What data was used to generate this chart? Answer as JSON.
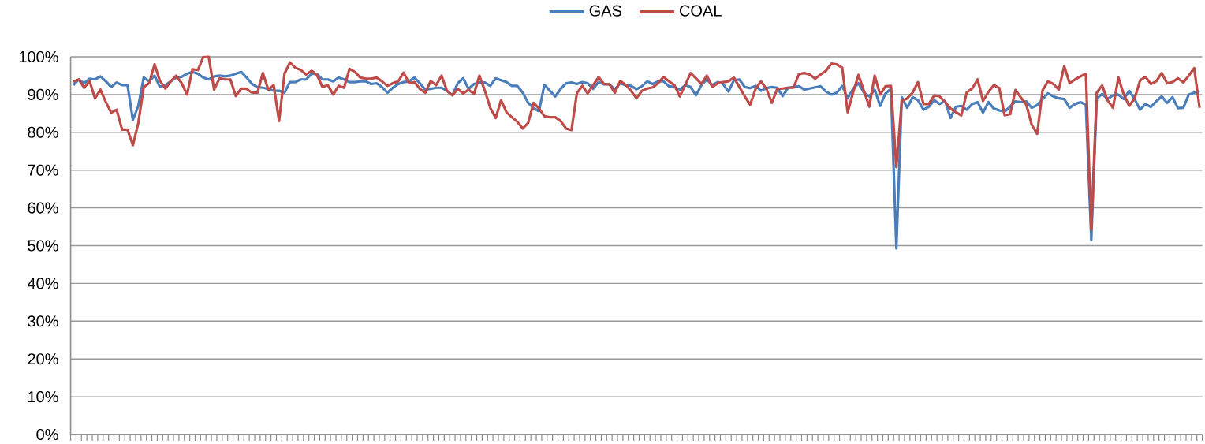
{
  "chart_data": {
    "type": "line",
    "categories": [
      null,
      null,
      null,
      null,
      null,
      null,
      null,
      null,
      null,
      null,
      null,
      null,
      null,
      null,
      null,
      null,
      null,
      null,
      null,
      null,
      null,
      null,
      null,
      null,
      null,
      null,
      null,
      null,
      null,
      null,
      null,
      null,
      null,
      null,
      null,
      null,
      null,
      null,
      null,
      null,
      null,
      null,
      null,
      null,
      null,
      null,
      null,
      null,
      null,
      null,
      null,
      null,
      null,
      null,
      null,
      null,
      null,
      null,
      null,
      null,
      null,
      null,
      null,
      null,
      null,
      null,
      null,
      null,
      null,
      null,
      null,
      null,
      null,
      null,
      null,
      null,
      null,
      null,
      null,
      null,
      null,
      null,
      null,
      null,
      null,
      null,
      null,
      null,
      null,
      null,
      null,
      null,
      null,
      null,
      null,
      null,
      null,
      null,
      null,
      null,
      null,
      null,
      null,
      null,
      null,
      null,
      null,
      null,
      null,
      null,
      null,
      null,
      null,
      null,
      null,
      null,
      null,
      null,
      null,
      null,
      null,
      null,
      null,
      null,
      null,
      null,
      null,
      null,
      null,
      null,
      null,
      null,
      null,
      null,
      null,
      null,
      null,
      null,
      null,
      null,
      null,
      null,
      null,
      null,
      null,
      null,
      null,
      null,
      null,
      null,
      null,
      null,
      null,
      null,
      null,
      null,
      null,
      null,
      null,
      null,
      null,
      null,
      null,
      null,
      null,
      null,
      null,
      null,
      null,
      null,
      null,
      null,
      null,
      null,
      null,
      null,
      null,
      null,
      null,
      null,
      null,
      null,
      null,
      null,
      null,
      null,
      null,
      null,
      null,
      null,
      null,
      null,
      null,
      null,
      null,
      null,
      null,
      null,
      null,
      null,
      null,
      null,
      null,
      null,
      null,
      null,
      null,
      null,
      null
    ],
    "series": [
      {
        "name": "GAS",
        "color": "#4a7ebb",
        "values": [
          92.5,
          94,
          93,
          94.2,
          94,
          94.8,
          93.5,
          92,
          93.2,
          92.5,
          92.5,
          83.3,
          87,
          94.5,
          93.5,
          95,
          92,
          92.5,
          93.5,
          94.5,
          94.7,
          95.5,
          96,
          95.5,
          94.5,
          94,
          94.8,
          95,
          94.8,
          95,
          95.5,
          96,
          94.5,
          92.8,
          92,
          91.8,
          91.5,
          91,
          91,
          90.5,
          93.3,
          93.3,
          94,
          94,
          95.5,
          95.5,
          94,
          94,
          93.5,
          94.5,
          94,
          93.3,
          93.3,
          93.5,
          93.5,
          92.8,
          93,
          92,
          90.5,
          91.8,
          92.8,
          93.3,
          93.5,
          94.5,
          93,
          91.3,
          91.5,
          91.8,
          91.8,
          91,
          89.8,
          93,
          94.3,
          91.5,
          92.8,
          93.2,
          93.2,
          92.3,
          94.3,
          93.8,
          93.3,
          92.3,
          92.3,
          90.5,
          87.8,
          86.4,
          85.6,
          92.6,
          91,
          89.5,
          91.5,
          93,
          93.2,
          92.8,
          93.3,
          93,
          91.5,
          93.3,
          92.7,
          92.7,
          91.4,
          93,
          92.5,
          92.3,
          91.4,
          92.2,
          93.5,
          92.8,
          93.5,
          93.5,
          92.2,
          92,
          91.3,
          92.5,
          92,
          89.8,
          92.5,
          94,
          92.5,
          93.3,
          92.8,
          90.8,
          93.8,
          94,
          92,
          91.7,
          92.3,
          91,
          91.7,
          92,
          91.8,
          89.6,
          91.8,
          92,
          92.2,
          91.3,
          91.6,
          91.9,
          92.2,
          90.8,
          90,
          90.5,
          92.3,
          89,
          91.5,
          93,
          90.5,
          89.5,
          91.3,
          87,
          90.3,
          91.5,
          49.3,
          89.3,
          86.5,
          89.3,
          88.5,
          86,
          86.8,
          88.5,
          87.5,
          88.3,
          83.8,
          86.8,
          87,
          86,
          87.5,
          88,
          85.2,
          88,
          86.3,
          85.8,
          85.5,
          86.8,
          88.2,
          88,
          88.2,
          86.5,
          87.2,
          88.8,
          90.3,
          89.5,
          89,
          88.8,
          86.5,
          87.5,
          88,
          87.3,
          51.5,
          88.8,
          90.2,
          88.8,
          89.8,
          90,
          88.8,
          91,
          88.8,
          86,
          87.5,
          86.7,
          88.2,
          89.5,
          87.8,
          89.3,
          86.4,
          86.5,
          90,
          90.5,
          91
        ]
      },
      {
        "name": "COAL",
        "color": "#be4b48",
        "values": [
          93.4,
          94,
          91.8,
          93.6,
          89,
          91.3,
          88,
          85.2,
          86,
          80.7,
          80.7,
          76.6,
          82.5,
          92,
          93,
          98,
          93.6,
          91.6,
          93.5,
          95,
          93,
          90,
          96.7,
          96.5,
          99.9,
          100,
          91.3,
          94.3,
          94,
          94,
          89.6,
          91.6,
          91.5,
          90.5,
          90.5,
          95.7,
          91.3,
          92.5,
          83,
          95.5,
          98.5,
          97.1,
          96.5,
          95.3,
          96.3,
          95.2,
          92,
          92.5,
          90,
          92.3,
          91.8,
          96.8,
          96,
          94.5,
          94.2,
          94.2,
          94.5,
          93.5,
          92.3,
          93,
          93.5,
          95.8,
          93,
          93.3,
          91.5,
          90.5,
          93.6,
          92.5,
          95,
          91,
          89.8,
          91.5,
          90.3,
          91.3,
          90.2,
          95,
          91,
          86.5,
          83.8,
          88.5,
          85.3,
          84,
          82.8,
          81,
          82.5,
          87.8,
          86.3,
          84.3,
          84,
          84,
          83,
          81,
          80.6,
          90.4,
          92.3,
          90.3,
          92.5,
          94.6,
          92.8,
          92.7,
          90.5,
          93.6,
          92.6,
          91,
          89,
          91,
          91.6,
          91.9,
          93,
          94.7,
          93.5,
          92.5,
          89.5,
          92.5,
          95.7,
          94.3,
          92.8,
          95,
          92,
          93,
          93.3,
          93.5,
          94.5,
          92,
          89.5,
          87.3,
          91.5,
          93.5,
          91.5,
          87.8,
          91.5,
          91.6,
          91.8,
          91.8,
          95.4,
          95.7,
          95.3,
          94.2,
          95.3,
          96.3,
          98.2,
          98,
          97.1,
          85.3,
          90.5,
          95.2,
          91,
          86.8,
          95,
          90,
          92.2,
          92.3,
          70.8,
          88.3,
          89,
          90.5,
          93.3,
          87.5,
          87.5,
          89.8,
          89.5,
          88,
          86.3,
          85.3,
          84.5,
          90.6,
          91.6,
          94,
          88.3,
          90.7,
          92.5,
          91.7,
          84.5,
          84.8,
          91.2,
          89.2,
          87.3,
          82,
          79.6,
          91.1,
          93.5,
          92.8,
          91.3,
          97.5,
          93,
          94,
          94.8,
          95.5,
          54.3,
          90.5,
          92.4,
          88.5,
          86.5,
          94.5,
          90,
          87,
          89,
          93.7,
          94.7,
          92.8,
          93.5,
          95.7,
          93,
          93.3,
          94.3,
          93.2,
          95,
          97,
          86.5
        ]
      }
    ],
    "ylim": [
      0,
      100
    ],
    "yticks": [
      {
        "value": 0,
        "label": "0%"
      },
      {
        "value": 10,
        "label": "10%"
      },
      {
        "value": 20,
        "label": "20%"
      },
      {
        "value": 30,
        "label": "30%"
      },
      {
        "value": 40,
        "label": "40%"
      },
      {
        "value": 50,
        "label": "50%"
      },
      {
        "value": 60,
        "label": "60%"
      },
      {
        "value": 70,
        "label": "70%"
      },
      {
        "value": 80,
        "label": "80%"
      },
      {
        "value": 90,
        "label": "90%"
      },
      {
        "value": 100,
        "label": "100%"
      }
    ],
    "grid": "y",
    "legend": "top"
  }
}
